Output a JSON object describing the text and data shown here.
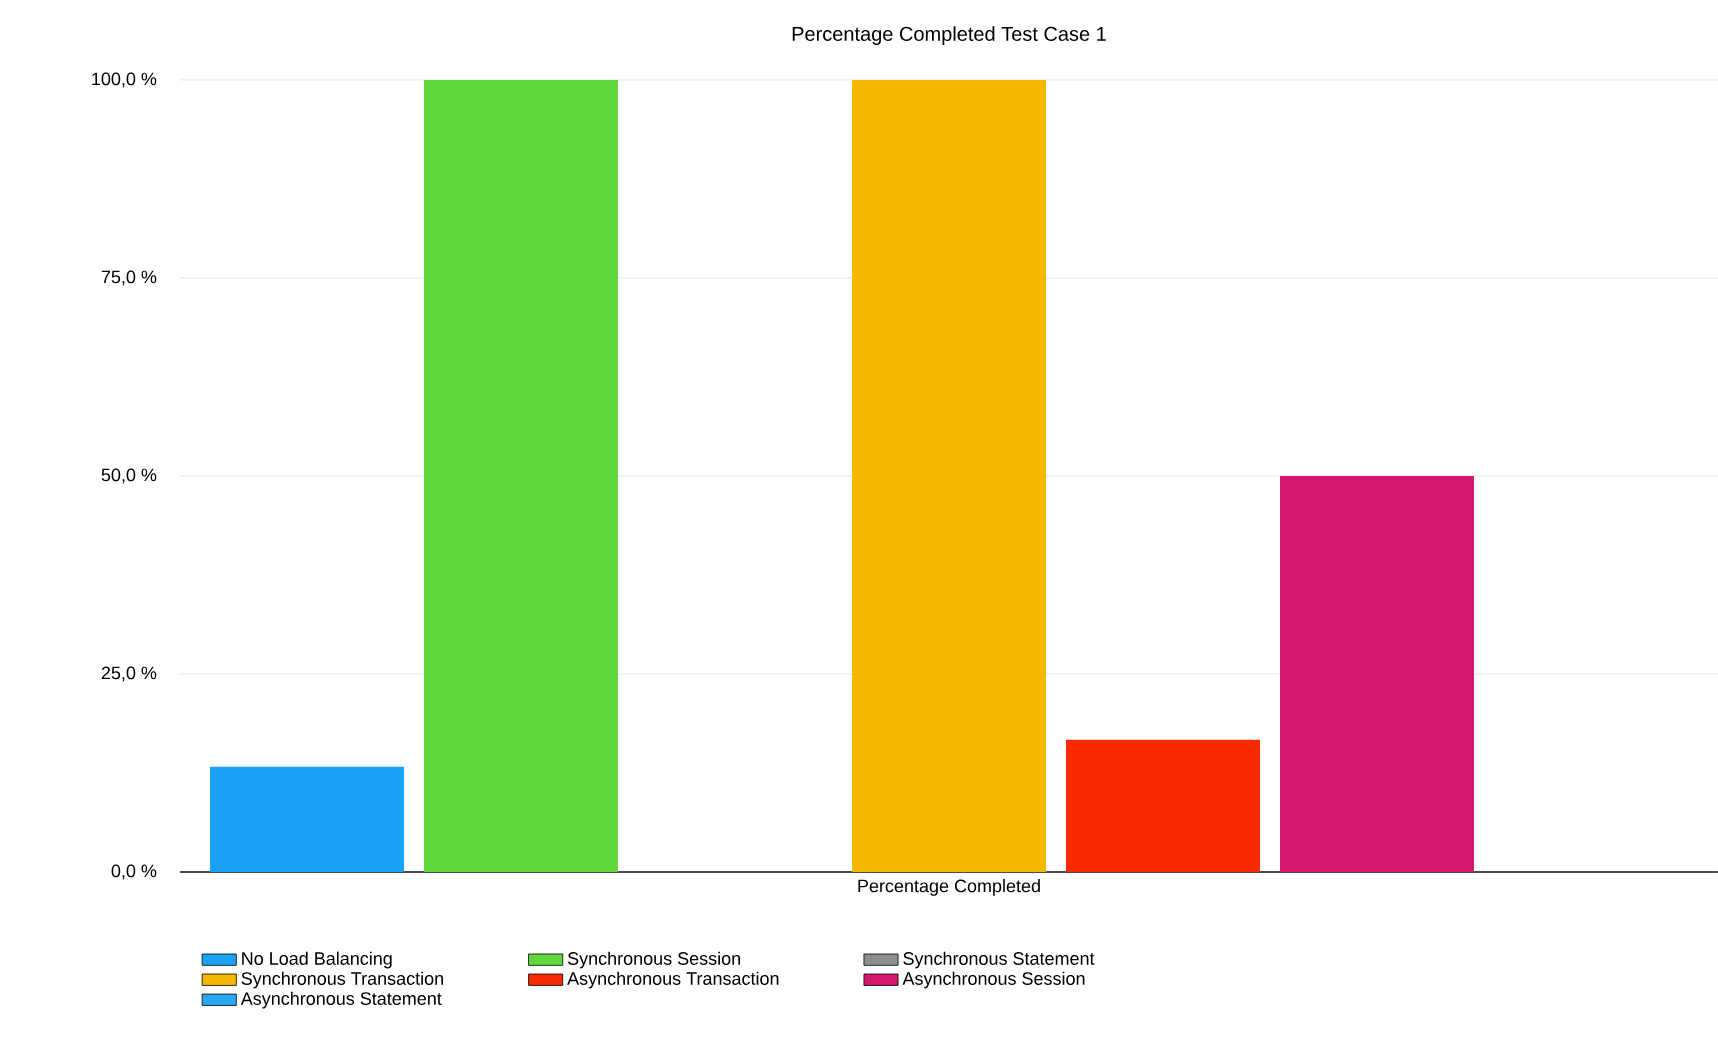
{
  "chart_data": {
    "type": "bar",
    "title": "Percentage Completed Test Case 1",
    "categories": [
      "Percentage Completed"
    ],
    "series": [
      {
        "name": "No Load Balancing",
        "color": "#1ba1f5",
        "values": [
          13.3
        ]
      },
      {
        "name": "Synchronous Session",
        "color": "#5fd93c",
        "values": [
          100
        ]
      },
      {
        "name": "Synchronous Statement",
        "color": "#8e8e8e",
        "values": [
          0
        ]
      },
      {
        "name": "Synchronous Transaction",
        "color": "#f5b800",
        "values": [
          100
        ]
      },
      {
        "name": "Asynchronous Transaction",
        "color": "#fa2a00",
        "values": [
          16.7
        ]
      },
      {
        "name": "Asynchronous Session",
        "color": "#d4186f",
        "values": [
          50
        ]
      },
      {
        "name": "Asynchronous Statement",
        "color": "#2aa7f0",
        "values": [
          0
        ]
      }
    ],
    "ylim": [
      0,
      100
    ],
    "yticks": [
      {
        "value": 0,
        "label": "0,0 %"
      },
      {
        "value": 25,
        "label": "25,0 %"
      },
      {
        "value": 50,
        "label": "50,0 %"
      },
      {
        "value": 75,
        "label": "75,0 %"
      },
      {
        "value": 100,
        "label": "100,0 %"
      }
    ],
    "grid": "y",
    "legend": "bottom"
  }
}
